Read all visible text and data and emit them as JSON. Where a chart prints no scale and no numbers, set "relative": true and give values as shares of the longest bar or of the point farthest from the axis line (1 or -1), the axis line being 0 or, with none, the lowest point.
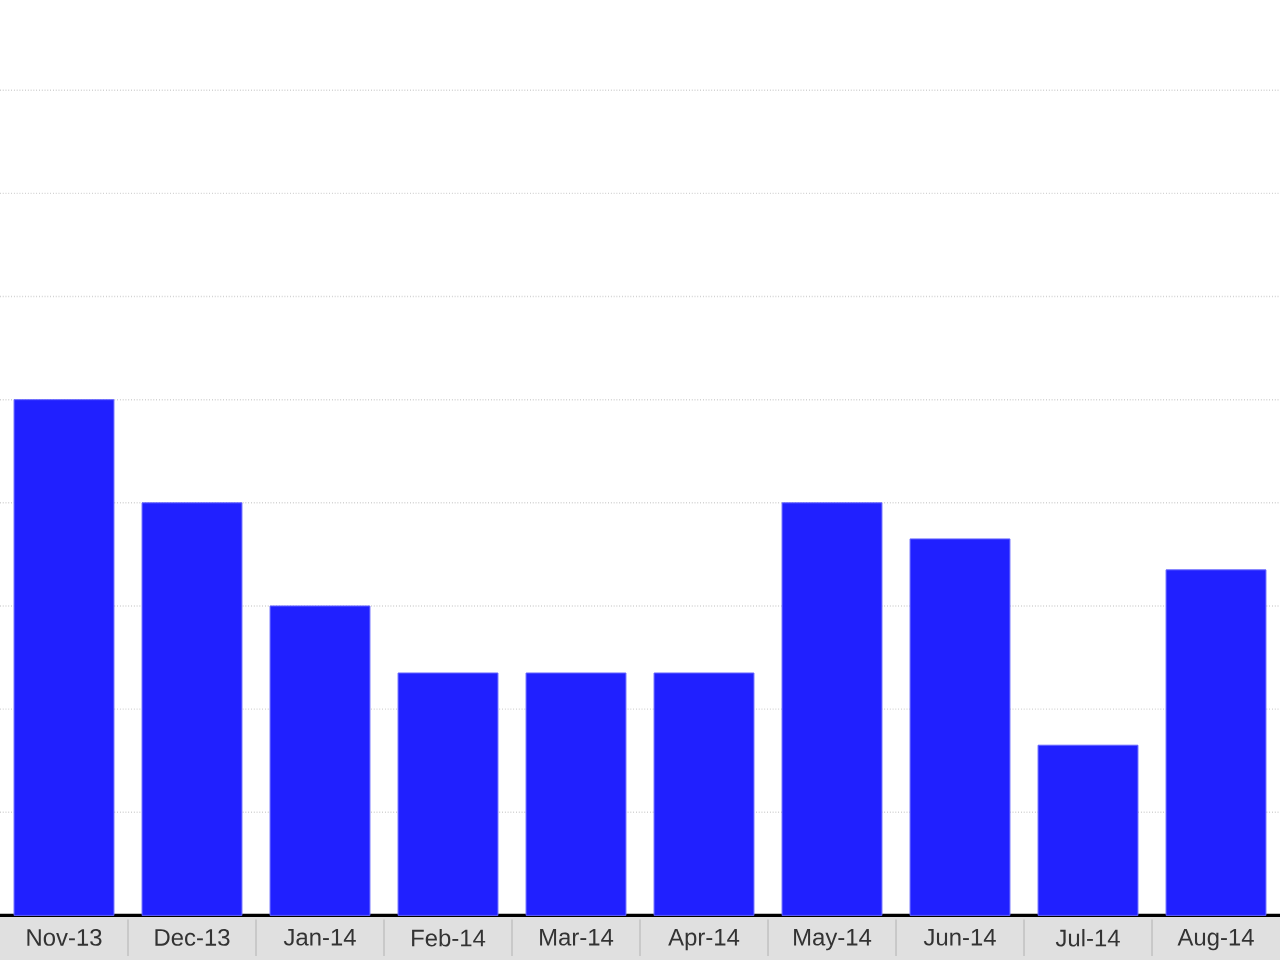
{
  "chart_data": {
    "type": "bar",
    "categories": [
      "Nov-13",
      "Dec-13",
      "Jan-14",
      "Feb-14",
      "Mar-14",
      "Apr-14",
      "May-14",
      "Jun-14",
      "Jul-14",
      "Aug-14"
    ],
    "values": [
      1,
      0.8,
      0.6,
      0.47,
      0.47,
      0.47,
      0.8,
      0.73,
      0.33,
      0.67
    ],
    "color": "#2020ff",
    "relative": true,
    "grid": "y"
  }
}
